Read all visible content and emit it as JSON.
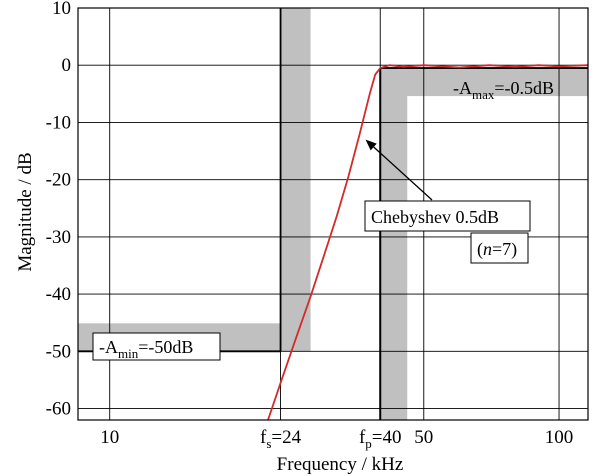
{
  "chart_data": {
    "type": "line",
    "xlabel": "Frequency / kHz",
    "ylabel": "Magnitude / dB",
    "xscale": "log",
    "xlim": [
      8.5,
      116
    ],
    "ylim": [
      -62,
      10
    ],
    "grid": true,
    "x_ticks": [
      10,
      24,
      40,
      50,
      100
    ],
    "x_tick_labels": {
      "10": "10",
      "24": {
        "pre": "f",
        "sub": "s",
        "post": "=24"
      },
      "40": {
        "pre": "f",
        "sub": "p",
        "post": "=40"
      },
      "50": "50",
      "100": "100"
    },
    "y_ticks": [
      10,
      0,
      -10,
      -20,
      -30,
      -40,
      -50,
      -60
    ],
    "y_tick_labels": [
      "10",
      "0",
      "-10",
      "-20",
      "-30",
      "-40",
      "-50",
      "-60"
    ],
    "spec": {
      "fs": 24,
      "fp": 40,
      "Amax": -0.5,
      "Amin": -50,
      "shade_color": "#c0c0c0"
    },
    "series": [
      {
        "color": "#d42a2a",
        "x": [
          22.5,
          24,
          26,
          28,
          30,
          32,
          34,
          36,
          37,
          38,
          39,
          40,
          42,
          45,
          50,
          60,
          70,
          80,
          90,
          100,
          116
        ],
        "y": [
          -62,
          -55.5,
          -47.6,
          -40.4,
          -33.2,
          -26.4,
          -19.4,
          -12,
          -8.3,
          -4.7,
          -1.6,
          -0.5,
          0,
          -0.3,
          0,
          -0.4,
          0,
          -0.3,
          0,
          -0.2,
          0
        ]
      }
    ],
    "annotations": {
      "amax": {
        "pre": "-A",
        "sub": "max",
        "post": "=-0.5dB"
      },
      "amin": {
        "pre": "-A",
        "sub": "min",
        "post": "=-50dB"
      },
      "curve_label": "Chebyshev 0.5dB",
      "order": {
        "pre": "(",
        "italic": "n",
        "post": "=7)"
      },
      "arrow_target": {
        "x": 37.1,
        "y": -13
      }
    }
  }
}
